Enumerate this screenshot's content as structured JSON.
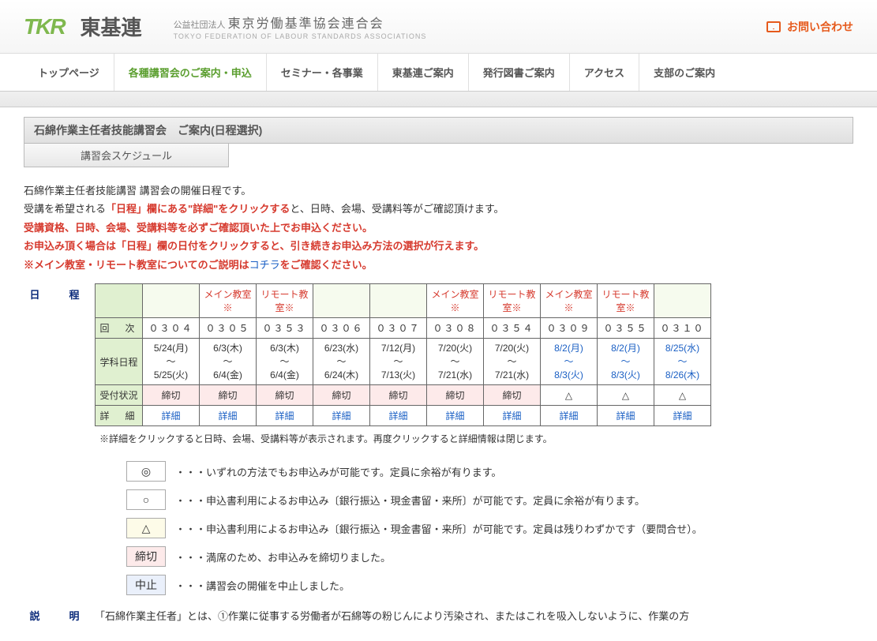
{
  "header": {
    "logo_text": "TKR",
    "brand_jp": "東基連",
    "org_small": "公益社団法人",
    "org_name": "東京労働基準協会連合会",
    "org_en": "TOKYO FEDERATION OF LABOUR STANDARDS ASSOCIATIONS",
    "contact_label": "お問い合わせ"
  },
  "nav": {
    "items": [
      {
        "label": "トップページ",
        "active": false
      },
      {
        "label": "各種講習会のご案内・申込",
        "active": true
      },
      {
        "label": "セミナー・各事業",
        "active": false
      },
      {
        "label": "東基連ご案内",
        "active": false
      },
      {
        "label": "発行図書ご案内",
        "active": false
      },
      {
        "label": "アクセス",
        "active": false
      },
      {
        "label": "支部のご案内",
        "active": false
      }
    ]
  },
  "page": {
    "title": "石綿作業主任者技能講習会　ご案内(日程選択)",
    "tab_label": "講習会スケジュール"
  },
  "info": {
    "line1a": "石綿作業主任者技能講習 講習会の開催日程です。",
    "line2a": "受講を希望される",
    "line2b": "「日程」欄にある\"詳細\"をクリックする",
    "line2c": "と、日時、会場、受講料等がご確認頂けます。",
    "line3": "受講資格、日時、会場、受講料等を必ずご確認頂いた上でお申込ください。",
    "line4": "お申込み頂く場合は「日程」欄の日付をクリックすると、引き続きお申込み方法の選択が行えます。",
    "line5a": "※メイン教室・リモート教室についてのご説明は",
    "line5b": "コチラ",
    "line5c": "をご確認ください。"
  },
  "schedule": {
    "section_label": "日　程",
    "row_headers": {
      "kai": "回　次",
      "date": "学科日程",
      "status": "受付状況",
      "detail": "詳　細"
    },
    "type_main": "メイン教室※",
    "type_remote": "リモート教室※",
    "detail_link": "詳細",
    "note": "※詳細をクリックすると日時、会場、受講料等が表示されます。再度クリックすると詳細情報は閉じます。",
    "cols": [
      {
        "type": "",
        "num": "０３０４",
        "d1": "5/24(月)",
        "d2": "5/25(火)",
        "status": "締切",
        "status_cls": "close",
        "blue": false
      },
      {
        "type": "main",
        "num": "０３０５",
        "d1": "6/3(木)",
        "d2": "6/4(金)",
        "status": "締切",
        "status_cls": "close",
        "blue": false
      },
      {
        "type": "remote",
        "num": "０３５３",
        "d1": "6/3(木)",
        "d2": "6/4(金)",
        "status": "締切",
        "status_cls": "close",
        "blue": false
      },
      {
        "type": "",
        "num": "０３０６",
        "d1": "6/23(水)",
        "d2": "6/24(木)",
        "status": "締切",
        "status_cls": "close",
        "blue": false
      },
      {
        "type": "",
        "num": "０３０７",
        "d1": "7/12(月)",
        "d2": "7/13(火)",
        "status": "締切",
        "status_cls": "close",
        "blue": false
      },
      {
        "type": "main",
        "num": "０３０８",
        "d1": "7/20(火)",
        "d2": "7/21(水)",
        "status": "締切",
        "status_cls": "close",
        "blue": false
      },
      {
        "type": "remote",
        "num": "０３５４",
        "d1": "7/20(火)",
        "d2": "7/21(水)",
        "status": "締切",
        "status_cls": "close",
        "blue": false
      },
      {
        "type": "main",
        "num": "０３０９",
        "d1": "8/2(月)",
        "d2": "8/3(火)",
        "status": "△",
        "status_cls": "open",
        "blue": true
      },
      {
        "type": "remote",
        "num": "０３５５",
        "d1": "8/2(月)",
        "d2": "8/3(火)",
        "status": "△",
        "status_cls": "open",
        "blue": true
      },
      {
        "type": "",
        "num": "０３１０",
        "d1": "8/25(水)",
        "d2": "8/26(木)",
        "status": "△",
        "status_cls": "open",
        "blue": true
      }
    ]
  },
  "legend": {
    "rows": [
      {
        "sym": "◎",
        "cls": "sym-open",
        "text": "・・・いずれの方法でもお申込みが可能です。定員に余裕が有ります。"
      },
      {
        "sym": "○",
        "cls": "sym-open",
        "text": "・・・申込書利用によるお申込み〔銀行振込・現金書留・来所〕が可能です。定員に余裕が有ります。"
      },
      {
        "sym": "△",
        "cls": "sym-warn",
        "text": "・・・申込書利用によるお申込み〔銀行振込・現金書留・来所〕が可能です。定員は残りわずかです（要問合せ）。"
      },
      {
        "sym": "締切",
        "cls": "sym-close",
        "text": "・・・満席のため、お申込みを締切りました。"
      },
      {
        "sym": "中止",
        "cls": "sym-cancel",
        "text": "・・・講習会の開催を中止しました。"
      }
    ]
  },
  "description": {
    "label": "説　明",
    "text": "「石綿作業主任者」とは、①作業に従事する労働者が石綿等の粉じんにより汚染され、またはこれを吸入しないように、作業の方"
  }
}
